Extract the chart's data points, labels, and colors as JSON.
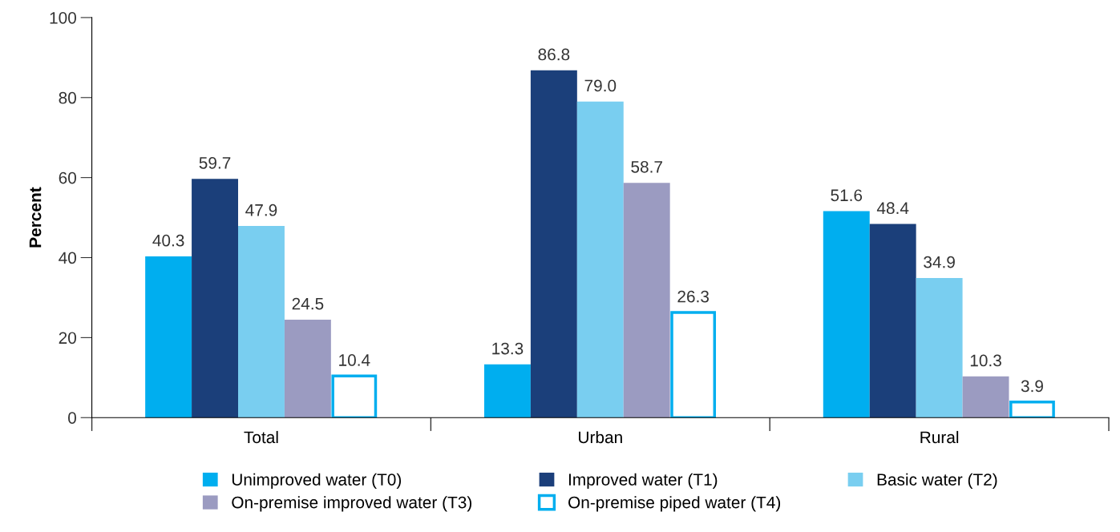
{
  "chart_data": {
    "type": "bar",
    "ylabel": "Percent",
    "categories": [
      "Total",
      "Urban",
      "Rural"
    ],
    "ylim": [
      0,
      100
    ],
    "yticks": [
      0,
      20,
      40,
      60,
      80,
      100
    ],
    "grid": false,
    "legend": "bottom",
    "series": [
      {
        "name": "Unimproved water (T0)",
        "color": "#00aeef",
        "values": [
          40.3,
          13.3,
          51.6
        ],
        "value_labels": [
          "40.3",
          "13.3",
          "51.6"
        ]
      },
      {
        "name": "Improved water (T1)",
        "color": "#1b3f7a",
        "values": [
          59.7,
          86.8,
          48.4
        ],
        "value_labels": [
          "59.7",
          "86.8",
          "48.4"
        ]
      },
      {
        "name": "Basic water (T2)",
        "color": "#79cef0",
        "values": [
          47.9,
          79.0,
          34.9
        ],
        "value_labels": [
          "47.9",
          "79.0",
          "34.9"
        ]
      },
      {
        "name": "On-premise improved water (T3)",
        "color": "#9b9bc1",
        "values": [
          24.5,
          58.7,
          10.3
        ],
        "value_labels": [
          "24.5",
          "58.7",
          "10.3"
        ]
      },
      {
        "name": "On-premise piped water (T4)",
        "color": "#00aeef",
        "values": [
          10.4,
          26.3,
          3.9
        ],
        "value_labels": [
          "10.4",
          "26.3",
          "3.9"
        ]
      }
    ]
  }
}
